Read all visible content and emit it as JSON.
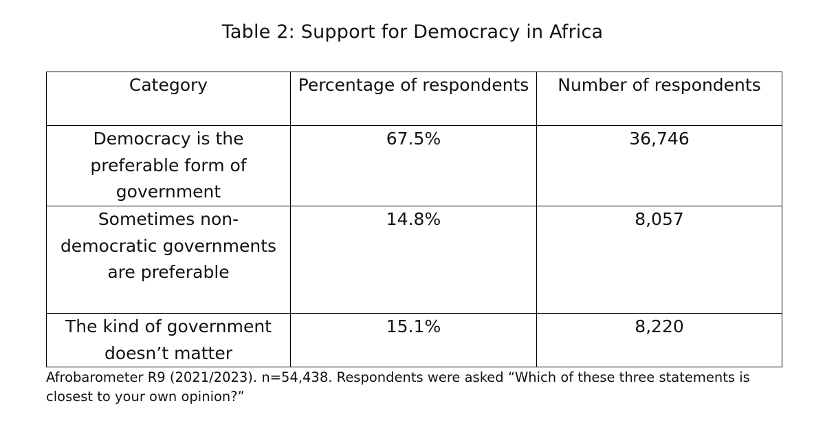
{
  "title": "Table 2: Support for Democracy in Africa",
  "table": {
    "headers": [
      "Category",
      "Percentage of respondents",
      "Number of respondents"
    ],
    "rows": [
      {
        "category": "Democracy is the preferable form of government",
        "percentage": "67.5%",
        "number": "36,746"
      },
      {
        "category": "Sometimes non-democratic governments are preferable",
        "percentage": "14.8%",
        "number": "8,057"
      },
      {
        "category": "The kind of government doesn’t matter",
        "percentage": "15.1%",
        "number": "8,220"
      }
    ]
  },
  "footnote": "Afrobarometer R9 (2021/2023). n=54,438. Respondents were asked “Which of these three statements is closest to your own opinion?”",
  "chart_data": {
    "type": "table",
    "title": "Table 2: Support for Democracy in Africa",
    "columns": [
      "Category",
      "Percentage of respondents",
      "Number of respondents"
    ],
    "rows": [
      [
        "Democracy is the preferable form of government",
        "67.5%",
        "36,746"
      ],
      [
        "Sometimes non-democratic governments are preferable",
        "14.8%",
        "8,057"
      ],
      [
        "The kind of government doesn’t matter",
        "15.1%",
        "8,220"
      ]
    ],
    "percentages": [
      67.5,
      14.8,
      15.1
    ],
    "respondents": [
      36746,
      8057,
      8220
    ]
  }
}
